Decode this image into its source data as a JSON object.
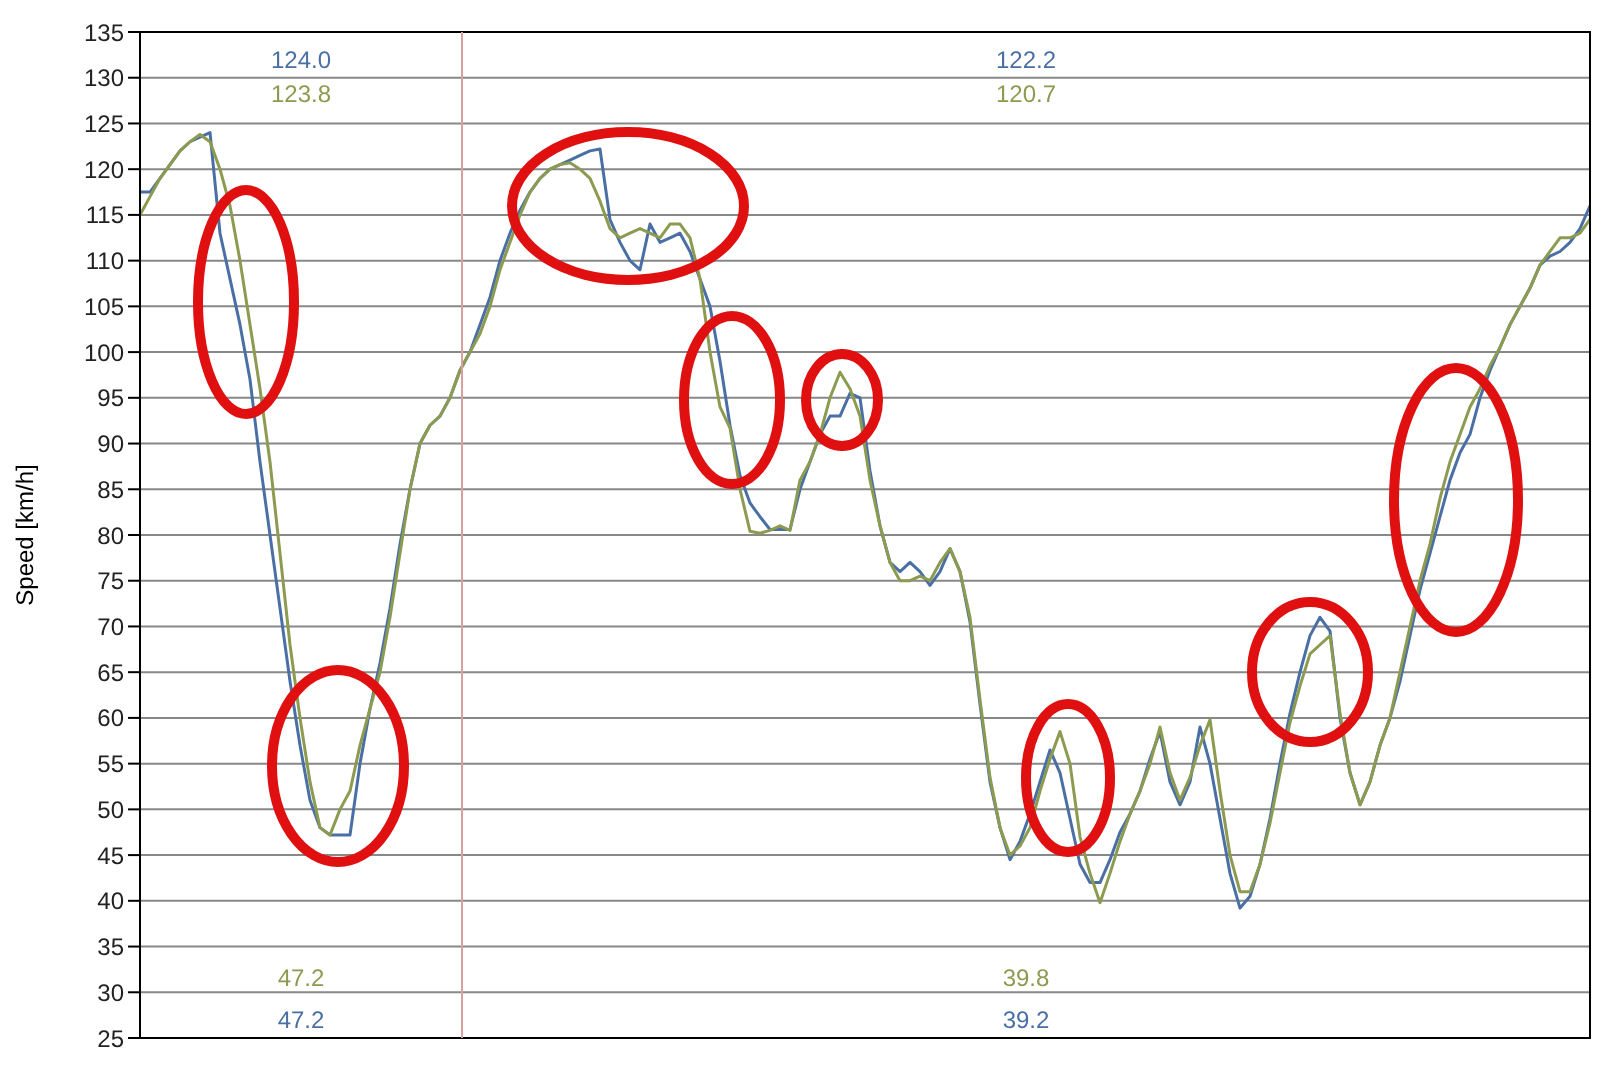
{
  "chart_data": {
    "type": "line",
    "ylabel": "Speed [km/h]",
    "categories": [
      null,
      null,
      null,
      null,
      null,
      null,
      null,
      null,
      null,
      null,
      null,
      null,
      null,
      null,
      null,
      null,
      null,
      null,
      null,
      null,
      null,
      null,
      null,
      null,
      null,
      null,
      null,
      null,
      null,
      null,
      null,
      null,
      null,
      null,
      null,
      null,
      null,
      null,
      null,
      null,
      null,
      null,
      null,
      null,
      null,
      null,
      null,
      null,
      null,
      null,
      null,
      null,
      null,
      null,
      null,
      null,
      null,
      null,
      null,
      null,
      null,
      null,
      null,
      null,
      null,
      null,
      null,
      null,
      null,
      null,
      null,
      null,
      null,
      null,
      null,
      null,
      null,
      null,
      null,
      null,
      null,
      null,
      null,
      null,
      null,
      null,
      null,
      null,
      null,
      null,
      null,
      null,
      null,
      null,
      null,
      null,
      null,
      null,
      null,
      null,
      null,
      null,
      null,
      null,
      null,
      null,
      null,
      null,
      null,
      null,
      null,
      null,
      null,
      null,
      null,
      null,
      null,
      null,
      null,
      null,
      null,
      null,
      null,
      null,
      null,
      null,
      null,
      null,
      null,
      null,
      null,
      null,
      null,
      null,
      null,
      null,
      null,
      null,
      null,
      null,
      null,
      null,
      null,
      null,
      null,
      null
    ],
    "series": [
      {
        "color": "#4a6fa5",
        "values": [
          117.5,
          117.5,
          119,
          120.5,
          122,
          123,
          123.5,
          124,
          113,
          108,
          103,
          97,
          88,
          80,
          72,
          64,
          57,
          51,
          48,
          47.2,
          47.2,
          47.2,
          55,
          61,
          66,
          72,
          79,
          85,
          90,
          92,
          93,
          95,
          98,
          100,
          103,
          106,
          110,
          113,
          115.5,
          117.5,
          119,
          120,
          120.5,
          121,
          121.5,
          122,
          122.2,
          114.5,
          112,
          110,
          109,
          114,
          112,
          112.5,
          113,
          111,
          108,
          105,
          99,
          92,
          86.5,
          83.5,
          82,
          80.6,
          80.6,
          80.6,
          85,
          88,
          91,
          93,
          93,
          95.5,
          95,
          87,
          81,
          77,
          76,
          77,
          76,
          74.5,
          76,
          78.5,
          76,
          70.5,
          61.5,
          53,
          48,
          44.5,
          46.5,
          49.5,
          53,
          56.5,
          54,
          49,
          44,
          42,
          42,
          44.5,
          47.5,
          49.5,
          52,
          55.5,
          58.5,
          53,
          50.5,
          53,
          59,
          55,
          49,
          43,
          39.2,
          40.5,
          44,
          49,
          55,
          60.5,
          65,
          69,
          71,
          69.5,
          60,
          54,
          50.5,
          53,
          57,
          60,
          64,
          69,
          74,
          78,
          82,
          86,
          89,
          91,
          95,
          98,
          100.5,
          103,
          105,
          107,
          109.5,
          110.5,
          111,
          112,
          113.5,
          116
        ]
      },
      {
        "color": "#8c9b50",
        "values": [
          115,
          117,
          119,
          120.5,
          122,
          123,
          123.8,
          123,
          120,
          116,
          110,
          103,
          96,
          88,
          78,
          68,
          60,
          53,
          48,
          47.2,
          50,
          52,
          57,
          61,
          65,
          71,
          78,
          85,
          90,
          92,
          93,
          95,
          98,
          100,
          102,
          105,
          109,
          112,
          115,
          117.5,
          119,
          120,
          120.5,
          120.7,
          120,
          119,
          116.5,
          113.5,
          112.5,
          113,
          113.5,
          113,
          112.5,
          114,
          114,
          112.5,
          108,
          100,
          94,
          91.7,
          85,
          80.4,
          80.2,
          80.5,
          81,
          80.5,
          86,
          88,
          91,
          95,
          97.8,
          96,
          93,
          86,
          81,
          77,
          75,
          75,
          75.5,
          75,
          77,
          78.5,
          76,
          71,
          62,
          53.5,
          48,
          45,
          46,
          48,
          52,
          55.5,
          58.5,
          55,
          47,
          43,
          39.8,
          43,
          46.5,
          49.5,
          52,
          55,
          59,
          54,
          51,
          53.5,
          57,
          59.8,
          52,
          45,
          41,
          41,
          44,
          48.5,
          54,
          59.5,
          63.5,
          67,
          68,
          69,
          60.5,
          54,
          50.5,
          53,
          57,
          60,
          65,
          70,
          75,
          79,
          84,
          88,
          91,
          94,
          96,
          98.5,
          100.5,
          103,
          105,
          107,
          109.5,
          111,
          112.5,
          112.5,
          113,
          114.5
        ]
      }
    ],
    "ylim": [
      25,
      135
    ],
    "yticks": [
      25,
      30,
      35,
      40,
      45,
      50,
      55,
      60,
      65,
      70,
      75,
      80,
      85,
      90,
      95,
      100,
      105,
      110,
      115,
      120,
      125,
      130,
      135
    ],
    "grid": "y",
    "marker": "none",
    "line_style": "solid",
    "annotations": [
      "124.0",
      "123.8",
      "47.2",
      "47.2",
      "122.2",
      "120.7",
      "39.8",
      "39.2"
    ]
  }
}
